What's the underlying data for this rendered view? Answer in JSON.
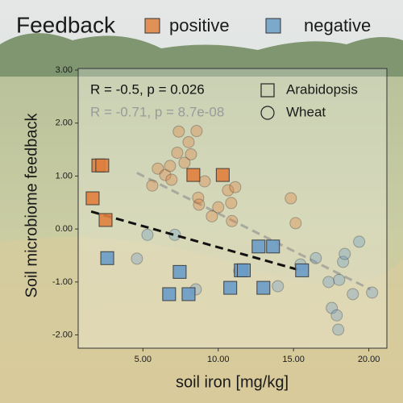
{
  "chart_data": {
    "type": "scatter",
    "xlabel": "soil iron [mg/kg]",
    "ylabel": "Soil microbiome feedback",
    "xlim": [
      0.7,
      21.2
    ],
    "ylim": [
      -2.25,
      3.03
    ],
    "xticks": [
      {
        "value": 5,
        "label": "5.00"
      },
      {
        "value": 10,
        "label": "10.00"
      },
      {
        "value": 15,
        "label": "15.00"
      },
      {
        "value": 20,
        "label": "20.00"
      }
    ],
    "yticks": [
      {
        "value": -2,
        "label": "-2.00"
      },
      {
        "value": -1,
        "label": "-1.00"
      },
      {
        "value": 0,
        "label": "0.00"
      },
      {
        "value": 1,
        "label": "1.00"
      },
      {
        "value": 2,
        "label": "2.00"
      },
      {
        "value": 3,
        "label": "3.00"
      }
    ],
    "grid": false,
    "feedback_legend": {
      "title": "Feedback",
      "items": [
        {
          "name": "positive",
          "color": "#e0803e"
        },
        {
          "name": "negative",
          "color": "#6a9cc6"
        }
      ]
    },
    "annotations": [
      {
        "text": "R = -0.5, p = 0.026",
        "color": "#111111"
      },
      {
        "text": "R = -0.71, p = 8.7e-08",
        "color": "#9a9a9a"
      }
    ],
    "series": [
      {
        "name": "Arabidopsis",
        "marker": "square",
        "opacity": 0.9,
        "fit_color": "#111111",
        "groups": [
          {
            "x": [
              1.66,
              2.04,
              2.3,
              2.52,
              8.35,
              10.3
            ],
            "values": [
              0.58,
              1.2,
              1.2,
              0.17,
              1.02,
              1.02
            ]
          },
          {
            "x": [
              2.63,
              6.74,
              7.44,
              8.03,
              10.8,
              11.5,
              11.7,
              12.68,
              13.0,
              13.64,
              15.57
            ],
            "values": [
              -0.55,
              -1.23,
              -0.81,
              -1.23,
              -1.11,
              -0.78,
              -0.78,
              -0.33,
              -1.11,
              -0.33,
              -0.78
            ]
          }
        ],
        "fit": {
          "x": [
            1.56,
            15.57
          ],
          "values": [
            0.33,
            -0.79
          ]
        }
      },
      {
        "name": "Wheat",
        "marker": "circle",
        "opacity": 0.35,
        "fit_color": "#8a8a8a",
        "groups": [
          {
            "x": [
              5.62,
              5.99,
              6.48,
              6.8,
              6.9,
              7.28,
              7.38,
              7.76,
              8.03,
              8.19,
              8.56,
              8.67,
              8.72,
              9.1,
              9.58,
              10.0,
              10.65,
              10.86,
              11.13,
              10.91,
              14.82,
              15.14
            ],
            "values": [
              0.82,
              1.14,
              1.02,
              1.19,
              0.93,
              1.44,
              1.84,
              1.25,
              1.64,
              1.41,
              1.85,
              0.59,
              0.46,
              0.9,
              0.24,
              0.41,
              0.73,
              0.49,
              0.79,
              0.15,
              0.58,
              0.11
            ]
          },
          {
            "x": [
              4.6,
              5.3,
              7.12,
              8.51,
              11.4,
              13.96,
              15.46,
              16.48,
              17.33,
              17.54,
              17.87,
              17.97,
              18.03,
              18.29,
              18.4,
              18.94,
              19.36,
              20.22
            ],
            "values": [
              -0.56,
              -0.11,
              -0.11,
              -1.14,
              -0.79,
              -1.08,
              -0.67,
              -0.55,
              -1.0,
              -1.49,
              -1.63,
              -1.9,
              -0.96,
              -0.62,
              -0.47,
              -1.23,
              -0.24,
              -1.2
            ]
          }
        ],
        "fit": {
          "x": [
            4.6,
            20.11
          ],
          "values": [
            1.06,
            -1.14
          ]
        }
      }
    ]
  }
}
